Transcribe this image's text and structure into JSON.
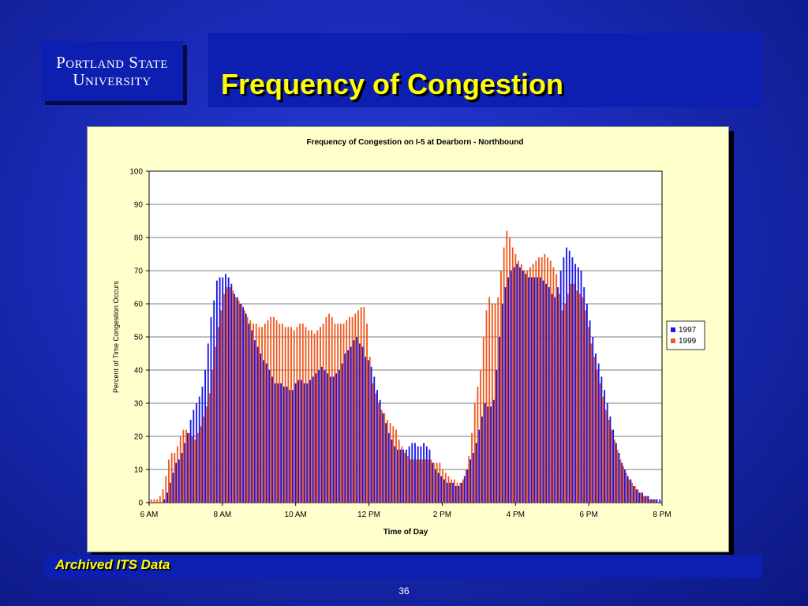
{
  "logo": {
    "line1": "Portland State",
    "line2": "University"
  },
  "slide": {
    "title": "Frequency of Congestion",
    "footer": "Archived ITS Data",
    "page_number": "36"
  },
  "colors": {
    "series_1997": "#1818e8",
    "series_1999": "#ee5a1e",
    "panel": "#ffffcc",
    "title": "#ffff00"
  },
  "chart_data": {
    "type": "bar",
    "title": "Frequency of Congestion on I-5 at Dearborn - Northbound",
    "xlabel": "Time of Day",
    "ylabel": "Percent of Time Congestion Occurs",
    "ylim": [
      0,
      100
    ],
    "yticks": [
      "0",
      "10",
      "20",
      "30",
      "40",
      "50",
      "60",
      "70",
      "80",
      "90",
      "100"
    ],
    "xlim": [
      "6 AM",
      "8 PM"
    ],
    "xticks": [
      "6 AM",
      "8 AM",
      "10 AM",
      "12 PM",
      "2 PM",
      "4 PM",
      "6 PM",
      "8 PM"
    ],
    "interval_minutes": 5,
    "grid": true,
    "legend_position": "right",
    "series": [
      {
        "name": "1997",
        "values": [
          0,
          0,
          0,
          0,
          0,
          1,
          3,
          6,
          9,
          12,
          13,
          15,
          18,
          21,
          25,
          28,
          30,
          32,
          35,
          40,
          48,
          56,
          61,
          67,
          68,
          68,
          69,
          68,
          66,
          63,
          62,
          60,
          59,
          57,
          54,
          52,
          49,
          47,
          45,
          43,
          42,
          40,
          38,
          36,
          36,
          36,
          35,
          35,
          34,
          34,
          36,
          37,
          37,
          36,
          36,
          37,
          38,
          39,
          40,
          41,
          40,
          39,
          38,
          38,
          39,
          40,
          42,
          45,
          46,
          47,
          49,
          50,
          48,
          47,
          44,
          43,
          41,
          38,
          34,
          31,
          27,
          24,
          21,
          19,
          17,
          16,
          16,
          16,
          16,
          17,
          18,
          18,
          17,
          17,
          18,
          17,
          16,
          12,
          10,
          9,
          8,
          7,
          6,
          6,
          6,
          5,
          5,
          6,
          8,
          10,
          13,
          15,
          18,
          22,
          26,
          30,
          29,
          29,
          31,
          40,
          50,
          60,
          65,
          68,
          70,
          71,
          72,
          71,
          70,
          69,
          68,
          68,
          68,
          68,
          68,
          67,
          66,
          65,
          63,
          62,
          65,
          70,
          74,
          77,
          76,
          74,
          72,
          71,
          70,
          65,
          60,
          55,
          50,
          45,
          42,
          38,
          34,
          30,
          26,
          22,
          18,
          15,
          12,
          10,
          8,
          7,
          5,
          4,
          3,
          3,
          2,
          2,
          1,
          1,
          1,
          1
        ]
      },
      {
        "name": "1999",
        "values": [
          1,
          1,
          1,
          2,
          4,
          8,
          13,
          15,
          15,
          17,
          20,
          22,
          22,
          21,
          20,
          19,
          21,
          23,
          26,
          29,
          33,
          40,
          47,
          53,
          58,
          63,
          65,
          65,
          64,
          62,
          61,
          60,
          58,
          56,
          55,
          54,
          54,
          53,
          53,
          54,
          55,
          56,
          56,
          55,
          54,
          54,
          53,
          53,
          53,
          52,
          53,
          54,
          54,
          53,
          52,
          52,
          51,
          52,
          53,
          54,
          56,
          57,
          56,
          54,
          54,
          54,
          54,
          55,
          56,
          56,
          57,
          58,
          59,
          59,
          54,
          44,
          36,
          33,
          30,
          28,
          27,
          25,
          24,
          23,
          22,
          19,
          17,
          15,
          14,
          13,
          13,
          13,
          13,
          13,
          13,
          13,
          13,
          12,
          12,
          12,
          10,
          9,
          8,
          7,
          7,
          6,
          6,
          7,
          10,
          14,
          21,
          30,
          35,
          40,
          50,
          58,
          62,
          60,
          60,
          62,
          70,
          77,
          82,
          80,
          77,
          75,
          73,
          72,
          70,
          70,
          71,
          72,
          73,
          74,
          74,
          75,
          74,
          73,
          71,
          69,
          63,
          58,
          60,
          63,
          66,
          66,
          64,
          63,
          62,
          58,
          53,
          48,
          44,
          40,
          36,
          32,
          28,
          25,
          22,
          19,
          16,
          13,
          11,
          9,
          7,
          6,
          5,
          4,
          3,
          2,
          2,
          1,
          1,
          1,
          0,
          0
        ]
      }
    ]
  }
}
